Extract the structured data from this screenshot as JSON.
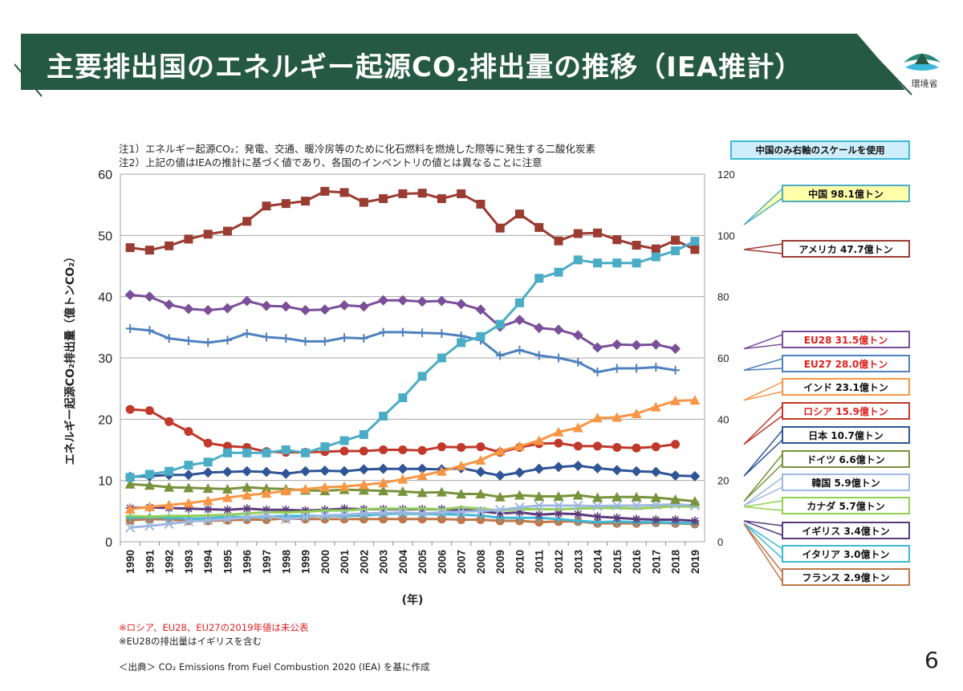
{
  "header": {
    "title_main": "主要排出国のエネルギー起源CO",
    "title_sub": "2",
    "title_tail": "排出量の推移（IEA推計）",
    "logo_text": "環境省"
  },
  "notes": {
    "note1": "注1）エネルギー起源CO₂：発電、交通、暖冷房等のために化石燃料を燃焼した際等に発生する二酸化炭素",
    "note2": "注2）上記の値はIEAの推計に基づく値であり、各国のインベントリの値とは異なることに注意"
  },
  "scale_note": "中国のみ右軸のスケールを使用",
  "footnotes": {
    "red": "※ロシア、EU28、EU27の2019年値は未公表",
    "black": "※EU28の排出量はイギリスを含む",
    "source": "＜出典＞ CO₂ Emissions from Fuel Combustion 2020 (IEA) を基に作成"
  },
  "page_number": "6",
  "chart_data": {
    "type": "line",
    "xlabel": "(年)",
    "ylabel": "エネルギー起源CO₂排出量（億トンCO₂）",
    "ylim": [
      0,
      60
    ],
    "y2lim": [
      0,
      120
    ],
    "yticks": [
      0,
      10,
      20,
      30,
      40,
      50,
      60
    ],
    "y2ticks": [
      0,
      20,
      40,
      60,
      80,
      100,
      120
    ],
    "grid": true,
    "legend_placement": "right callouts",
    "x": [
      1990,
      1991,
      1992,
      1993,
      1994,
      1995,
      1996,
      1997,
      1998,
      1999,
      2000,
      2001,
      2002,
      2003,
      2004,
      2005,
      2006,
      2007,
      2008,
      2009,
      2010,
      2011,
      2012,
      2013,
      2014,
      2015,
      2016,
      2017,
      2018,
      2019
    ],
    "series": [
      {
        "name": "中国",
        "label": "中国 98.1億トン",
        "axis": "right",
        "color": "#4bacc6",
        "marker": "square",
        "values": [
          21,
          22,
          23,
          25,
          26,
          29,
          29,
          29,
          30,
          29,
          31,
          33,
          35,
          41,
          47,
          54,
          60,
          65,
          67,
          71,
          78,
          86,
          88,
          92,
          91,
          91,
          91,
          93,
          95,
          98.1
        ]
      },
      {
        "name": "アメリカ",
        "label": "アメリカ 47.7億トン",
        "axis": "left",
        "color": "#9a3c32",
        "marker": "square",
        "values": [
          48,
          47.6,
          48.3,
          49.4,
          50.2,
          50.7,
          52.3,
          54.8,
          55.2,
          55.6,
          57.2,
          57,
          55.4,
          56,
          56.8,
          56.9,
          56,
          56.8,
          55.1,
          51.2,
          53.5,
          51.3,
          49.1,
          50.3,
          50.4,
          49.3,
          48.4,
          47.8,
          49.2,
          47.7
        ]
      },
      {
        "name": "EU28",
        "label": "EU28 31.5億トン",
        "axis": "left",
        "color": "#7a4f9a",
        "marker": "diamond",
        "label_color": "#e02020",
        "values": [
          40.3,
          40,
          38.7,
          38,
          37.8,
          38.1,
          39.3,
          38.5,
          38.4,
          37.8,
          37.9,
          38.6,
          38.4,
          39.4,
          39.4,
          39.2,
          39.3,
          38.8,
          37.9,
          35.1,
          36.2,
          34.9,
          34.6,
          33.7,
          31.7,
          32.2,
          32.1,
          32.2,
          31.5,
          null
        ]
      },
      {
        "name": "EU27",
        "label": "EU27 28.0億トン",
        "axis": "left",
        "color": "#4f81bd",
        "marker": "plus",
        "label_color": "#e02020",
        "values": [
          34.8,
          34.5,
          33.2,
          32.8,
          32.5,
          32.9,
          34,
          33.4,
          33.2,
          32.7,
          32.7,
          33.3,
          33.2,
          34.2,
          34.2,
          34.1,
          34,
          33.6,
          32.9,
          30.4,
          31.3,
          30.4,
          30,
          29.3,
          27.7,
          28.3,
          28.3,
          28.5,
          28,
          null
        ]
      },
      {
        "name": "インド",
        "label": "インド 23.1億トン",
        "axis": "left",
        "color": "#f79646",
        "marker": "triangle",
        "values": [
          5.3,
          5.7,
          6,
          6.3,
          6.7,
          7.2,
          7.6,
          7.9,
          8.3,
          8.6,
          8.9,
          9,
          9.3,
          9.6,
          10.2,
          10.8,
          11.5,
          12.4,
          13.3,
          14.8,
          15.6,
          16.5,
          17.9,
          18.6,
          20.2,
          20.3,
          20.9,
          22,
          23,
          23.1
        ]
      },
      {
        "name": "ロシア",
        "label": "ロシア 15.9億トン",
        "axis": "left",
        "color": "#c0392b",
        "marker": "circle",
        "label_color": "#e02020",
        "values": [
          21.6,
          21.4,
          19.6,
          18,
          16.1,
          15.6,
          15.4,
          14.7,
          14.6,
          14.6,
          14.7,
          14.8,
          14.8,
          15,
          15,
          14.9,
          15.5,
          15.4,
          15.5,
          14.6,
          15.4,
          16,
          16.1,
          15.6,
          15.6,
          15.4,
          15.3,
          15.5,
          15.9,
          null
        ]
      },
      {
        "name": "日本",
        "label": "日本 10.7億トン",
        "axis": "left",
        "color": "#2f5597",
        "marker": "diamond",
        "values": [
          10.6,
          10.7,
          10.9,
          10.9,
          11.3,
          11.4,
          11.5,
          11.4,
          11.1,
          11.5,
          11.6,
          11.5,
          11.8,
          11.9,
          11.9,
          11.9,
          11.8,
          12,
          11.4,
          10.8,
          11.3,
          11.9,
          12.2,
          12.4,
          12,
          11.7,
          11.5,
          11.4,
          10.8,
          10.7
        ]
      },
      {
        "name": "ドイツ",
        "label": "ドイツ 6.6億トン",
        "axis": "left",
        "color": "#77933c",
        "marker": "triangle",
        "values": [
          9.4,
          9.2,
          8.9,
          8.8,
          8.7,
          8.6,
          8.9,
          8.7,
          8.6,
          8.4,
          8.3,
          8.5,
          8.4,
          8.3,
          8.2,
          8,
          8.1,
          7.8,
          7.8,
          7.3,
          7.6,
          7.4,
          7.4,
          7.6,
          7.2,
          7.3,
          7.3,
          7.2,
          6.9,
          6.6
        ]
      },
      {
        "name": "韓国",
        "label": "韓国 5.9億トン",
        "axis": "left",
        "color": "#9eb8e0",
        "marker": "x",
        "values": [
          2.3,
          2.6,
          2.9,
          3.3,
          3.5,
          3.7,
          4,
          4.3,
          3.7,
          4,
          4.3,
          4.4,
          4.6,
          4.7,
          4.8,
          4.6,
          4.8,
          4.9,
          5,
          5.2,
          5.6,
          5.9,
          5.9,
          5.9,
          5.8,
          5.9,
          5.9,
          6,
          6.1,
          5.9
        ]
      },
      {
        "name": "カナダ",
        "label": "カナダ 5.7億トン",
        "axis": "left",
        "color": "#92d050",
        "marker": "dash",
        "values": [
          4.2,
          4.1,
          4.2,
          4.2,
          4.3,
          4.4,
          4.6,
          4.8,
          4.8,
          4.9,
          5.1,
          5.1,
          5.3,
          5.4,
          5.4,
          5.4,
          5.3,
          5.6,
          5.4,
          5.1,
          5.3,
          5.3,
          5.3,
          5.4,
          5.5,
          5.5,
          5.4,
          5.6,
          5.8,
          5.7
        ]
      },
      {
        "name": "イギリス",
        "label": "イギリス 3.4億トン",
        "axis": "left",
        "color": "#5b3a7a",
        "marker": "star",
        "values": [
          5.5,
          5.6,
          5.5,
          5.4,
          5.3,
          5.2,
          5.4,
          5.2,
          5.2,
          5.1,
          5.2,
          5.4,
          5.3,
          5.3,
          5.3,
          5.3,
          5.3,
          5.2,
          5,
          4.6,
          4.8,
          4.4,
          4.6,
          4.5,
          4.1,
          3.9,
          3.7,
          3.6,
          3.6,
          3.4
        ]
      },
      {
        "name": "イタリア",
        "label": "イタリア 3.0億トン",
        "axis": "left",
        "color": "#3cb8d8",
        "marker": "plus",
        "values": [
          3.9,
          4,
          3.9,
          3.8,
          3.8,
          4.1,
          4,
          4.1,
          4.2,
          4.2,
          4.2,
          4.2,
          4.3,
          4.5,
          4.6,
          4.5,
          4.5,
          4.4,
          4.3,
          3.9,
          3.9,
          3.9,
          3.7,
          3.4,
          3.2,
          3.3,
          3.2,
          3.2,
          3.1,
          3
        ]
      },
      {
        "name": "フランス",
        "label": "フランス 2.9億トン",
        "axis": "left",
        "color": "#c0784a",
        "marker": "circle",
        "values": [
          3.5,
          3.7,
          3.6,
          3.4,
          3.4,
          3.5,
          3.6,
          3.6,
          3.8,
          3.7,
          3.7,
          3.7,
          3.7,
          3.7,
          3.7,
          3.7,
          3.7,
          3.6,
          3.6,
          3.4,
          3.4,
          3.2,
          3.3,
          3.3,
          3,
          3,
          3,
          3.1,
          3,
          2.9
        ]
      }
    ]
  }
}
